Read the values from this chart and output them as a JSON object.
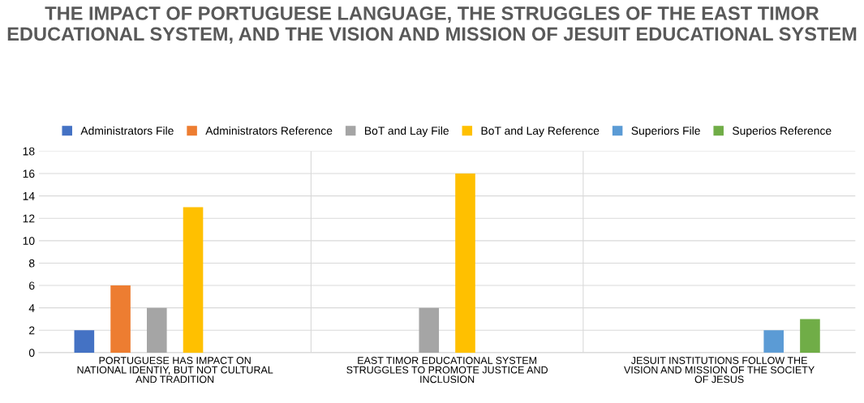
{
  "chart_data": {
    "type": "bar",
    "title": "THE IMPACT OF PORTUGUESE LANGUAGE, THE STRUGGLES OF THE EAST TIMOR EDUCATIONAL SYSTEM, AND THE VISION AND MISSION OF JESUIT EDUCATIONAL SYSTEM",
    "categories": [
      "PORTUGUESE HAS IMPACT ON\nNATIONAL IDENTIY, BUT NOT CULTURAL\nAND TRADITION",
      "EAST TIMOR EDUCATIONAL SYSTEM\nSTRUGGLES TO PROMOTE JUSTICE AND\nINCLUSION",
      "JESUIT INSTITUTIONS FOLLOW THE\nVISION AND MISSION OF THE SOCIETY\nOF JESUS"
    ],
    "series": [
      {
        "name": "Administrators File",
        "color": "#4472c4",
        "values": [
          2,
          null,
          null
        ]
      },
      {
        "name": "Administrators Reference",
        "color": "#ed7d31",
        "values": [
          6,
          null,
          null
        ]
      },
      {
        "name": "BoT and Lay File",
        "color": "#a5a5a5",
        "values": [
          4,
          4,
          null
        ]
      },
      {
        "name": "BoT and Lay Reference",
        "color": "#ffc000",
        "values": [
          13,
          16,
          null
        ]
      },
      {
        "name": "Superiors File",
        "color": "#5b9bd5",
        "values": [
          null,
          null,
          2
        ]
      },
      {
        "name": "Superios Reference",
        "color": "#70ad47",
        "values": [
          null,
          null,
          3
        ]
      }
    ],
    "ylim": [
      0,
      18
    ],
    "yticks": [
      0,
      2,
      4,
      6,
      8,
      10,
      12,
      14,
      16,
      18
    ],
    "grid": true,
    "legend": "top"
  }
}
